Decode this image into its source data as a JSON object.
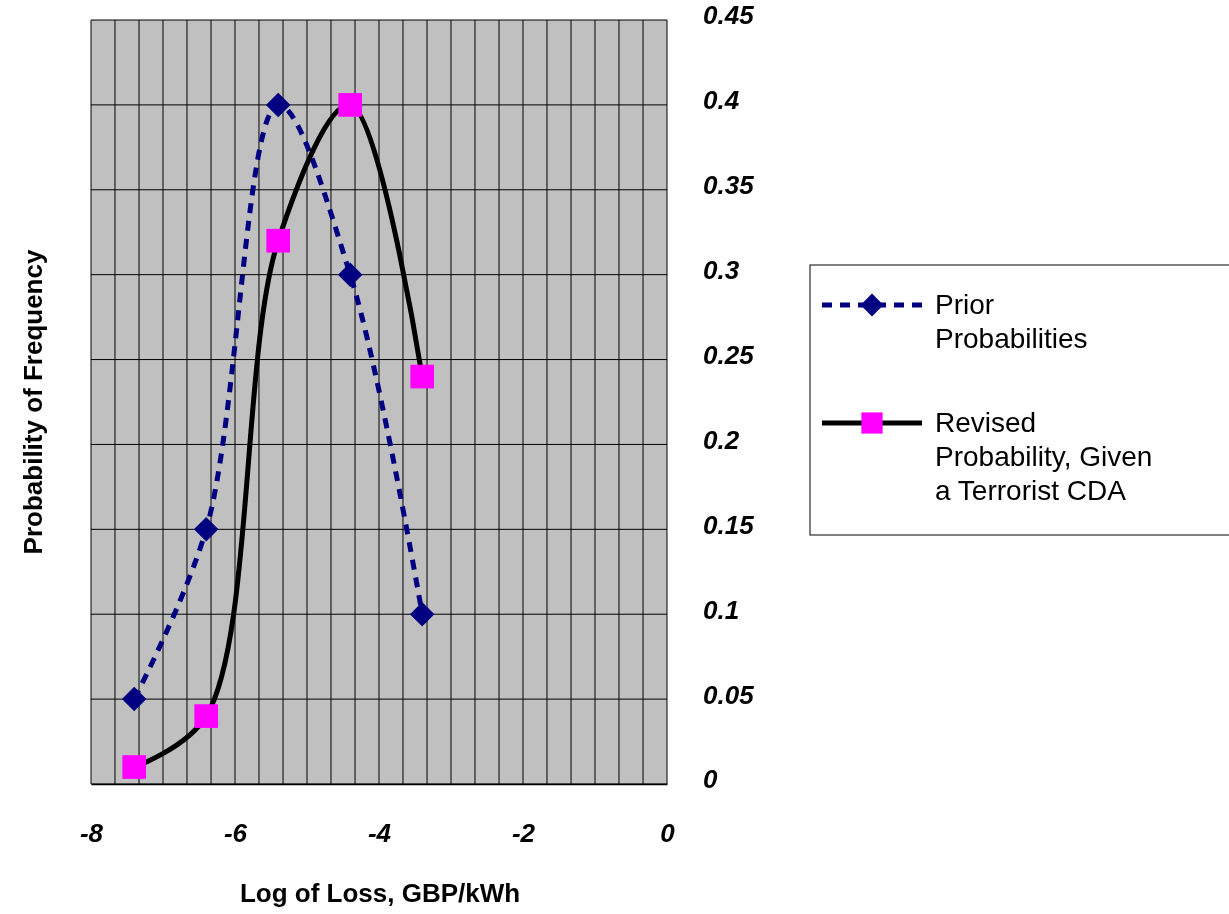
{
  "chart_data": {
    "type": "line",
    "xlabel": "Log of Loss, GBP/kWh",
    "ylabel": "Probability of Frequency",
    "xlim": [
      -8,
      0
    ],
    "xticks": [
      -8,
      {
        "value": -7.667,
        "label": null
      },
      {
        "value": -7.333,
        "label": null
      },
      {
        "value": -7,
        "label": null
      },
      {
        "value": -6.667,
        "label": null
      },
      {
        "value": -6.333,
        "label": null
      },
      -6,
      {
        "value": -5.667,
        "label": null
      },
      {
        "value": -5.333,
        "label": null
      },
      {
        "value": -5,
        "label": null
      },
      {
        "value": -4.667,
        "label": null
      },
      {
        "value": -4.333,
        "label": null
      },
      -4,
      {
        "value": -3.667,
        "label": null
      },
      {
        "value": -3.333,
        "label": null
      },
      {
        "value": -3,
        "label": null
      },
      {
        "value": -2.667,
        "label": null
      },
      {
        "value": -2.333,
        "label": null
      },
      -2,
      {
        "value": -1.667,
        "label": null
      },
      {
        "value": -1.333,
        "label": null
      },
      {
        "value": -1,
        "label": null
      },
      {
        "value": -0.667,
        "label": null
      },
      {
        "value": -0.333,
        "label": null
      },
      0
    ],
    "ylim": [
      0,
      0.45
    ],
    "yticks": [
      0,
      0.05,
      0.1,
      0.15,
      0.2,
      0.25,
      0.3,
      0.35,
      0.4,
      0.45
    ],
    "grid": true,
    "legend": "right",
    "series": [
      {
        "name": "Prior Probabilities",
        "color": "#000080",
        "line_style": "dashed",
        "marker": "diamond",
        "x": [
          -7.4,
          -6.4,
          -5.4,
          -4.4,
          -3.4
        ],
        "values": [
          0.05,
          0.15,
          0.4,
          0.3,
          0.1
        ]
      },
      {
        "name": "Revised Probability, Given a Terrorist CDA",
        "color": "#000000",
        "colors": [
          "#ff00ff",
          "#ff00ff",
          "#ff00ff",
          "#ff00ff",
          "#ff00ff"
        ],
        "line_style": "solid",
        "marker": "square",
        "x": [
          -7.4,
          -6.4,
          -5.4,
          -4.4,
          -3.4
        ],
        "values": [
          0.01,
          0.04,
          0.32,
          0.4,
          0.24
        ]
      }
    ]
  }
}
